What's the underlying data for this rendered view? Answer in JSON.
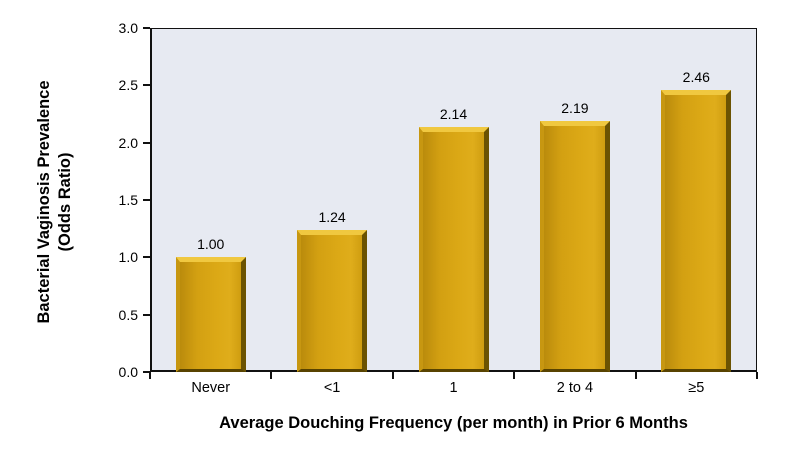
{
  "chart_data": {
    "type": "bar",
    "title": "",
    "categories": [
      "Never",
      "<1",
      "1",
      "2 to 4",
      "≥5"
    ],
    "values": [
      1.0,
      1.24,
      2.14,
      2.19,
      2.46
    ],
    "value_labels": [
      "1.00",
      "1.24",
      "2.14",
      "2.19",
      "2.46"
    ],
    "xlabel": "Average Douching Frequency (per month) in Prior 6 Months",
    "ylabel_line1": "Bacterial Vaginosis Prevalence",
    "ylabel_line2": "(Odds Ratio)",
    "ylim": [
      0,
      3
    ],
    "ytick_labels": [
      "0.0",
      "0.5",
      "1.0",
      "1.5",
      "2.0",
      "2.5",
      "3.0"
    ],
    "grid": false,
    "legend_position": "none",
    "colors": {
      "bar_fill": "#D9A513",
      "bar_highlight": "#F0C840",
      "bar_edge_dark": "#6B5302",
      "plot_background": "#E7EAF2",
      "axis": "#111111",
      "text": "#000000",
      "page_background": "#FFFFFF"
    }
  }
}
